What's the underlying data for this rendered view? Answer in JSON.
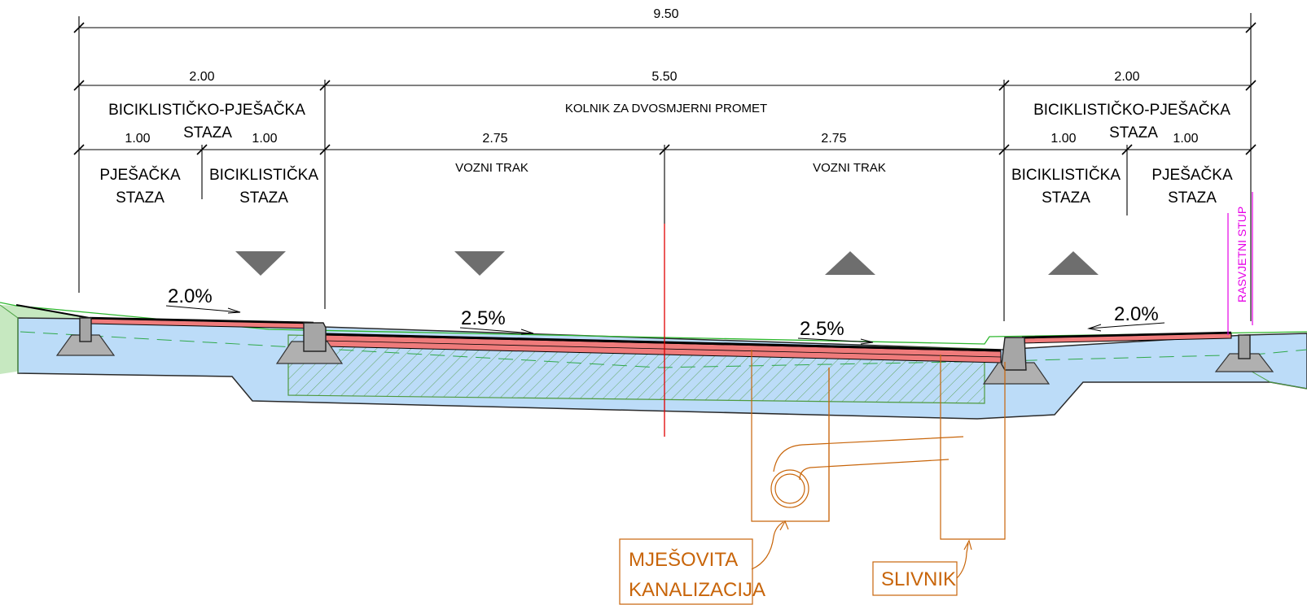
{
  "dimensions": {
    "total": "9.50",
    "left_path": "2.00",
    "carriageway": "5.50",
    "right_path": "2.00",
    "left_ped": "1.00",
    "left_bike": "1.00",
    "lane_left": "2.75",
    "lane_right": "2.75",
    "right_bike": "1.00",
    "right_ped": "1.00"
  },
  "labels": {
    "path_line1": "BICIKLISTIČKO-PJEŠAČKA",
    "path_line2": "STAZA",
    "carriageway": "KOLNIK ZA DVOSMJERNI PROMET",
    "ped_line1": "PJEŠAČKA",
    "ped_line2": "STAZA",
    "bike_line1": "BICIKLISTIČKA",
    "bike_line2": "STAZA",
    "lane": "VOZNI TRAK",
    "lamp_post": "RASVJETNI STUP"
  },
  "slopes": {
    "left_path": "2.0%",
    "lane_left": "2.5%",
    "lane_right": "2.5%",
    "right_path": "2.0%"
  },
  "callouts": {
    "sewer_line1": "MJEŠOVITA",
    "sewer_line2": "KANALIZACIJA",
    "gully": "SLIVNIK"
  },
  "colors": {
    "asphalt": "#ef7b7b",
    "base_layer": "#bcdcf8",
    "embankment": "#c6e8c0",
    "curb": "#a6a6a6",
    "callout": "#c8650a",
    "lamp_post": "#e600e6",
    "axis": "#e00000"
  }
}
